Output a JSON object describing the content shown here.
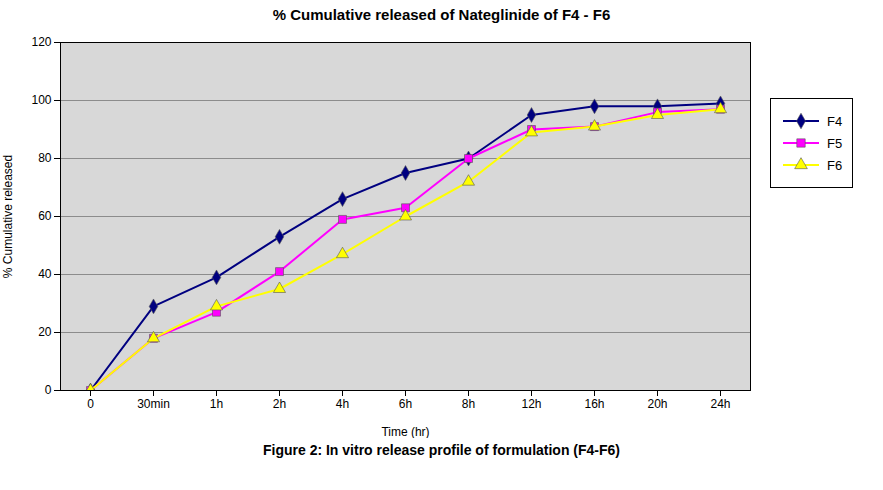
{
  "chart_data": {
    "type": "line",
    "title": "% Cumulative released of Nateglinide of F4 - F6",
    "xlabel": "Time (hr)",
    "ylabel": "% Cumulative released",
    "caption": "Figure 2: In vitro release profile of formulation (F4-F6)",
    "categories": [
      "0",
      "30min",
      "1h",
      "2h",
      "4h",
      "6h",
      "8h",
      "12h",
      "16h",
      "20h",
      "24h"
    ],
    "series": [
      {
        "name": "F4",
        "color": "#000080",
        "marker": "diamond",
        "values": [
          0,
          29,
          39,
          53,
          66,
          75,
          80,
          95,
          98,
          98,
          99
        ]
      },
      {
        "name": "F5",
        "color": "#FF00FF",
        "marker": "square",
        "values": [
          0,
          18,
          27,
          41,
          59,
          63,
          80,
          90,
          91,
          96,
          97
        ]
      },
      {
        "name": "F6",
        "color": "#FFFF00",
        "marker": "triangle",
        "values": [
          0,
          18,
          29,
          35,
          47,
          60,
          72,
          89,
          91,
          95,
          97
        ]
      }
    ],
    "ylim": [
      0,
      120
    ],
    "yticks": [
      0,
      20,
      40,
      60,
      80,
      100,
      120
    ],
    "grid": true,
    "legend": "right"
  }
}
